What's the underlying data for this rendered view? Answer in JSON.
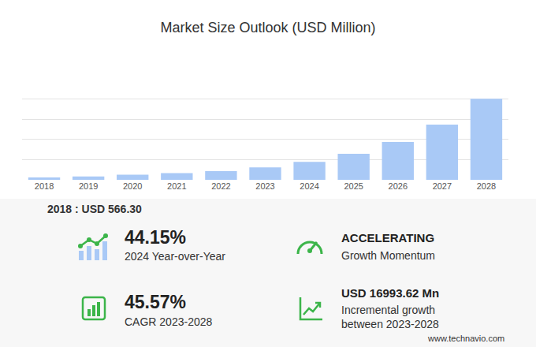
{
  "chart_data": {
    "type": "bar",
    "title": "Market Size Outlook (USD Million)",
    "categories": [
      "2018",
      "2019",
      "2020",
      "2021",
      "2022",
      "2023",
      "2024",
      "2025",
      "2026",
      "2027",
      "2028"
    ],
    "values": [
      566.3,
      850,
      1250,
      1650,
      2150,
      3069,
      4424,
      6450,
      9380,
      13670,
      20063
    ],
    "color": "#a9c9f6",
    "ylim": [
      0,
      25000
    ],
    "yticks": [
      0,
      5000,
      10000,
      15000,
      20000,
      25000
    ],
    "grid": true,
    "tick_labels": "x"
  },
  "base_note": "2018 : USD  566.30",
  "highlights": [
    {
      "value": "44.15%",
      "label": [
        "2024 Year-over-Year"
      ]
    },
    {
      "value": "ACCELERATING",
      "label": [
        "Growth Momentum"
      ]
    },
    {
      "value": "45.57%",
      "label": [
        "CAGR 2023-2028"
      ]
    },
    {
      "value": "USD 16993.62 Mn",
      "label": [
        "Incremental growth",
        "between 2023-2028"
      ]
    }
  ],
  "footer": "www.technavio.com"
}
